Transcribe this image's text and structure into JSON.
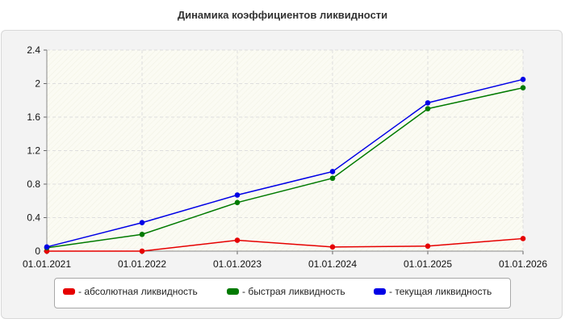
{
  "chart_data": {
    "type": "line",
    "title": "Динамика коэффициентов ликвидности",
    "categories": [
      "01.01.2021",
      "01.01.2022",
      "01.01.2023",
      "01.01.2024",
      "01.01.2025",
      "01.01.2026"
    ],
    "ylim": [
      0,
      2.4
    ],
    "yticks": [
      "0",
      "0.4",
      "0.8",
      "1.2",
      "1.6",
      "2",
      "2.4"
    ],
    "grid": true,
    "legend_position": "bottom",
    "series": [
      {
        "name": "- абсолютная ликвидность",
        "color": "#e60000",
        "values": [
          0.0,
          0.0,
          0.13,
          0.05,
          0.06,
          0.15
        ]
      },
      {
        "name": "- быстрая ликвидность",
        "color": "#007a00",
        "values": [
          0.04,
          0.2,
          0.58,
          0.87,
          1.7,
          1.95
        ]
      },
      {
        "name": "- текущая ликвидность",
        "color": "#0000e6",
        "values": [
          0.05,
          0.34,
          0.67,
          0.95,
          1.77,
          2.05
        ]
      }
    ]
  }
}
